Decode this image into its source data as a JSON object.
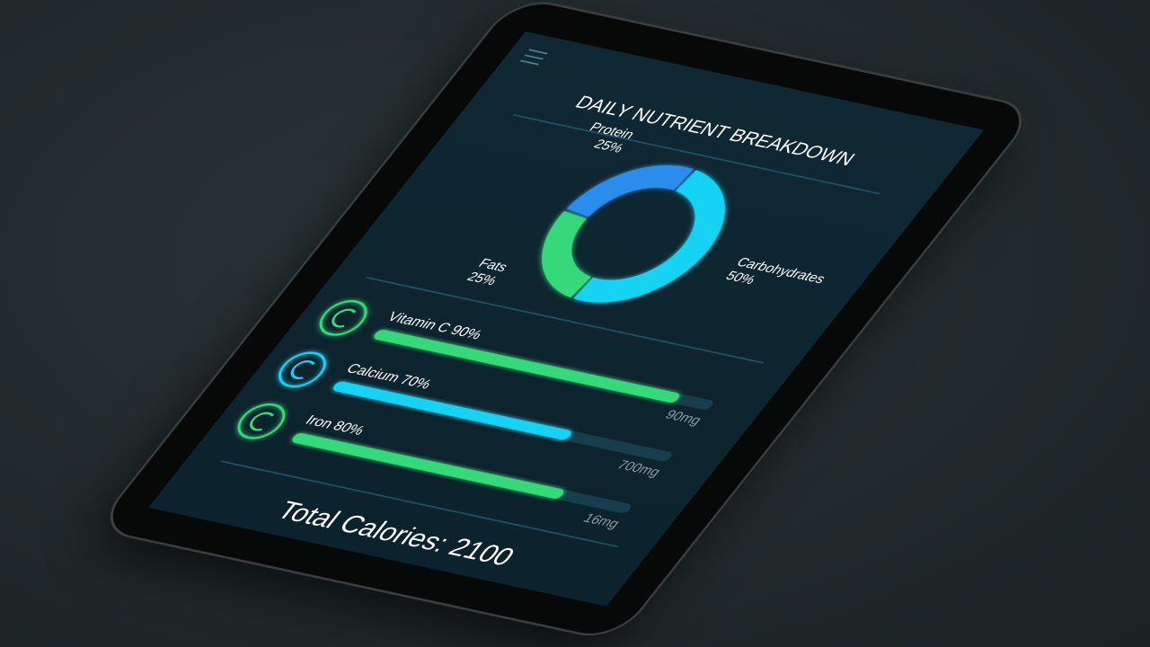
{
  "header": {
    "title": "DAILY NUTRIENT BREAKDOWN"
  },
  "chart_data": {
    "type": "pie",
    "donut": true,
    "categories": [
      "Carbohydrates",
      "Fats",
      "Protein"
    ],
    "values": [
      50,
      25,
      25
    ],
    "value_labels": [
      "50%",
      "25%",
      "25%"
    ],
    "colors": [
      "#19d3f3",
      "#35d97a",
      "#2a8cec"
    ]
  },
  "nutrients": [
    {
      "label": "Vitamin C 90%",
      "percent": 90,
      "amount": "90mg",
      "color": "#35d97a"
    },
    {
      "label": "Calcium 70%",
      "percent": 70,
      "amount": "700mg",
      "color": "#19d3f3"
    },
    {
      "label": "Iron 80%",
      "percent": 80,
      "amount": "16mg",
      "color": "#35d97a"
    }
  ],
  "footer": {
    "total": "Total Calories: 2100"
  }
}
